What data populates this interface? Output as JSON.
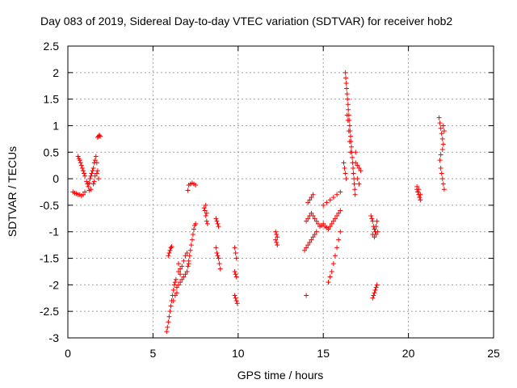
{
  "chart_data": {
    "type": "scatter",
    "title": "Day 083 of 2019, Sidereal Day-to-day VTEC variation (SDTVAR) for receiver hob2",
    "xlabel": "GPS time / hours",
    "ylabel": "SDTVAR / TECUs",
    "xlim": [
      0,
      25
    ],
    "ylim": [
      -3,
      2.5
    ],
    "xticks": [
      "0",
      "5",
      "10",
      "15",
      "20",
      "25"
    ],
    "yticks": [
      "-3",
      "-2.5",
      "-2",
      "-1.5",
      "-1",
      "-0.5",
      "0",
      "0.5",
      "1",
      "1.5",
      "2",
      "2.5"
    ],
    "grid": true,
    "marker": "plus",
    "color": "#ff0000",
    "series": [
      {
        "name": "SDTVAR",
        "points": [
          [
            0.3,
            -0.25
          ],
          [
            0.4,
            -0.27
          ],
          [
            0.5,
            -0.28
          ],
          [
            0.6,
            -0.3
          ],
          [
            0.7,
            -0.3
          ],
          [
            0.8,
            -0.32
          ],
          [
            0.9,
            -0.3
          ],
          [
            1.0,
            -0.25
          ],
          [
            0.6,
            0.42
          ],
          [
            0.65,
            0.38
          ],
          [
            0.7,
            0.35
          ],
          [
            0.75,
            0.3
          ],
          [
            0.8,
            0.25
          ],
          [
            0.85,
            0.2
          ],
          [
            0.9,
            0.15
          ],
          [
            0.95,
            0.1
          ],
          [
            1.0,
            0.05
          ],
          [
            1.1,
            -0.05
          ],
          [
            1.15,
            -0.1
          ],
          [
            1.2,
            -0.15
          ],
          [
            1.25,
            -0.08
          ],
          [
            1.3,
            0.0
          ],
          [
            1.35,
            0.05
          ],
          [
            1.4,
            0.1
          ],
          [
            1.45,
            0.15
          ],
          [
            1.5,
            0.2
          ],
          [
            1.55,
            0.3
          ],
          [
            1.6,
            0.35
          ],
          [
            1.65,
            0.42
          ],
          [
            1.7,
            0.3
          ],
          [
            1.75,
            0.15
          ],
          [
            1.8,
            0.0
          ],
          [
            1.55,
            -0.05
          ],
          [
            1.5,
            -0.1
          ],
          [
            1.35,
            -0.2
          ],
          [
            1.25,
            -0.22
          ],
          [
            1.6,
            0.05
          ],
          [
            1.7,
            0.1
          ],
          [
            1.75,
            0.78
          ],
          [
            1.8,
            0.8
          ],
          [
            1.85,
            0.82
          ],
          [
            1.9,
            0.8
          ],
          [
            5.8,
            -2.88
          ],
          [
            5.85,
            -2.8
          ],
          [
            5.9,
            -2.7
          ],
          [
            5.95,
            -2.6
          ],
          [
            6.0,
            -2.5
          ],
          [
            6.05,
            -2.4
          ],
          [
            6.1,
            -2.3
          ],
          [
            6.15,
            -2.2
          ],
          [
            6.2,
            -2.1
          ],
          [
            6.25,
            -2.0
          ],
          [
            6.3,
            -1.95
          ],
          [
            6.35,
            -1.9
          ],
          [
            6.4,
            -2.05
          ],
          [
            6.5,
            -2.0
          ],
          [
            6.6,
            -1.95
          ],
          [
            6.7,
            -1.9
          ],
          [
            6.8,
            -1.85
          ],
          [
            6.9,
            -1.8
          ],
          [
            7.0,
            -1.75
          ],
          [
            7.05,
            -1.65
          ],
          [
            7.1,
            -1.55
          ],
          [
            7.15,
            -1.45
          ],
          [
            7.2,
            -1.35
          ],
          [
            7.25,
            -1.25
          ],
          [
            7.3,
            -1.15
          ],
          [
            7.35,
            -1.05
          ],
          [
            7.4,
            -0.95
          ],
          [
            7.45,
            -0.88
          ],
          [
            7.5,
            -0.85
          ],
          [
            6.5,
            -1.6
          ],
          [
            6.6,
            -1.7
          ],
          [
            6.7,
            -1.65
          ],
          [
            6.8,
            -1.55
          ],
          [
            6.9,
            -1.45
          ],
          [
            7.0,
            -1.4
          ],
          [
            6.2,
            -2.3
          ],
          [
            6.3,
            -2.2
          ],
          [
            6.4,
            -2.15
          ],
          [
            6.5,
            -1.75
          ],
          [
            6.6,
            -1.8
          ],
          [
            7.1,
            -1.6
          ],
          [
            5.9,
            -1.45
          ],
          [
            5.95,
            -1.4
          ],
          [
            6.0,
            -1.35
          ],
          [
            6.05,
            -1.3
          ],
          [
            6.1,
            -1.28
          ],
          [
            7.1,
            -0.12
          ],
          [
            7.2,
            -0.1
          ],
          [
            7.3,
            -0.08
          ],
          [
            7.4,
            -0.1
          ],
          [
            7.5,
            -0.12
          ],
          [
            7.05,
            -0.22
          ],
          [
            8.0,
            -0.55
          ],
          [
            8.05,
            -0.6
          ],
          [
            8.1,
            -0.7
          ],
          [
            8.15,
            -0.8
          ],
          [
            8.2,
            -0.85
          ],
          [
            8.1,
            -0.5
          ],
          [
            8.15,
            -0.65
          ],
          [
            8.7,
            -0.75
          ],
          [
            8.75,
            -0.8
          ],
          [
            8.8,
            -0.85
          ],
          [
            8.85,
            -0.9
          ],
          [
            8.7,
            -1.3
          ],
          [
            8.75,
            -1.4
          ],
          [
            8.8,
            -1.45
          ],
          [
            8.85,
            -1.5
          ],
          [
            8.9,
            -1.6
          ],
          [
            8.95,
            -1.7
          ],
          [
            9.8,
            -1.3
          ],
          [
            9.85,
            -1.4
          ],
          [
            9.9,
            -1.5
          ],
          [
            9.8,
            -1.75
          ],
          [
            9.85,
            -1.8
          ],
          [
            9.9,
            -1.85
          ],
          [
            9.8,
            -2.2
          ],
          [
            9.85,
            -2.25
          ],
          [
            9.9,
            -2.3
          ],
          [
            9.95,
            -2.35
          ],
          [
            12.2,
            -1.0
          ],
          [
            12.25,
            -1.05
          ],
          [
            12.3,
            -1.1
          ],
          [
            12.2,
            -1.15
          ],
          [
            12.25,
            -1.2
          ],
          [
            12.3,
            -1.25
          ],
          [
            14.0,
            -2.2
          ],
          [
            13.9,
            -1.35
          ],
          [
            14.0,
            -1.3
          ],
          [
            14.1,
            -1.25
          ],
          [
            14.2,
            -1.2
          ],
          [
            14.3,
            -1.15
          ],
          [
            14.4,
            -1.1
          ],
          [
            14.5,
            -1.05
          ],
          [
            14.6,
            -1.0
          ],
          [
            14.0,
            -0.8
          ],
          [
            14.1,
            -0.75
          ],
          [
            14.2,
            -0.7
          ],
          [
            14.3,
            -0.65
          ],
          [
            14.4,
            -0.7
          ],
          [
            14.5,
            -0.75
          ],
          [
            14.6,
            -0.8
          ],
          [
            14.7,
            -0.85
          ],
          [
            14.8,
            -0.9
          ],
          [
            14.9,
            -0.88
          ],
          [
            15.0,
            -0.85
          ],
          [
            15.1,
            -0.9
          ],
          [
            15.2,
            -0.92
          ],
          [
            15.3,
            -0.95
          ],
          [
            15.4,
            -0.9
          ],
          [
            15.5,
            -0.85
          ],
          [
            15.6,
            -0.8
          ],
          [
            15.7,
            -0.75
          ],
          [
            15.8,
            -0.7
          ],
          [
            15.9,
            -0.65
          ],
          [
            16.0,
            -0.6
          ],
          [
            14.1,
            -0.45
          ],
          [
            14.2,
            -0.4
          ],
          [
            14.3,
            -0.35
          ],
          [
            14.4,
            -0.3
          ],
          [
            15.0,
            -0.5
          ],
          [
            15.2,
            -0.45
          ],
          [
            15.4,
            -0.4
          ],
          [
            15.6,
            -0.35
          ],
          [
            15.8,
            -0.3
          ],
          [
            16.0,
            -0.25
          ],
          [
            15.3,
            -1.95
          ],
          [
            15.4,
            -1.85
          ],
          [
            15.5,
            -1.75
          ],
          [
            15.6,
            -1.6
          ],
          [
            15.7,
            -1.45
          ],
          [
            15.8,
            -1.3
          ],
          [
            15.9,
            -1.15
          ],
          [
            16.0,
            -1.0
          ],
          [
            16.3,
            2.0
          ],
          [
            16.32,
            1.9
          ],
          [
            16.35,
            1.8
          ],
          [
            16.37,
            1.7
          ],
          [
            16.4,
            1.6
          ],
          [
            16.42,
            1.5
          ],
          [
            16.45,
            1.4
          ],
          [
            16.47,
            1.3
          ],
          [
            16.5,
            1.2
          ],
          [
            16.52,
            1.1
          ],
          [
            16.55,
            1.0
          ],
          [
            16.57,
            0.9
          ],
          [
            16.6,
            0.8
          ],
          [
            16.62,
            0.7
          ],
          [
            16.65,
            0.6
          ],
          [
            16.67,
            0.5
          ],
          [
            16.7,
            0.4
          ],
          [
            16.72,
            0.3
          ],
          [
            16.75,
            0.2
          ],
          [
            16.77,
            0.1
          ],
          [
            16.8,
            0.0
          ],
          [
            16.82,
            -0.1
          ],
          [
            16.85,
            -0.2
          ],
          [
            16.87,
            -0.3
          ],
          [
            16.9,
            0.3
          ],
          [
            17.0,
            0.25
          ],
          [
            17.1,
            0.2
          ],
          [
            17.2,
            0.15
          ],
          [
            16.2,
            0.3
          ],
          [
            16.25,
            0.2
          ],
          [
            16.3,
            0.1
          ],
          [
            16.35,
            0.0
          ],
          [
            16.4,
            1.2
          ],
          [
            16.45,
            1.1
          ],
          [
            16.5,
            0.9
          ],
          [
            16.55,
            0.7
          ],
          [
            16.6,
            0.5
          ],
          [
            16.9,
            0.5
          ],
          [
            17.0,
            0.0
          ],
          [
            17.1,
            -0.1
          ],
          [
            17.8,
            -0.7
          ],
          [
            17.85,
            -0.75
          ],
          [
            17.9,
            -0.8
          ],
          [
            17.95,
            -0.9
          ],
          [
            18.0,
            -0.95
          ],
          [
            18.05,
            -1.0
          ],
          [
            18.1,
            -0.9
          ],
          [
            18.15,
            -0.8
          ],
          [
            17.9,
            -1.05
          ],
          [
            18.0,
            -1.1
          ],
          [
            18.1,
            -1.05
          ],
          [
            18.2,
            -1.0
          ],
          [
            17.9,
            -2.25
          ],
          [
            17.95,
            -2.2
          ],
          [
            18.0,
            -2.15
          ],
          [
            18.05,
            -2.1
          ],
          [
            18.1,
            -2.05
          ],
          [
            18.15,
            -2.0
          ],
          [
            20.5,
            -0.2
          ],
          [
            20.55,
            -0.25
          ],
          [
            20.6,
            -0.3
          ],
          [
            20.65,
            -0.35
          ],
          [
            20.7,
            -0.4
          ],
          [
            20.5,
            -0.15
          ],
          [
            20.6,
            -0.2
          ],
          [
            20.7,
            -0.3
          ],
          [
            21.8,
            1.15
          ],
          [
            21.85,
            1.05
          ],
          [
            21.9,
            0.95
          ],
          [
            21.95,
            0.85
          ],
          [
            22.0,
            0.75
          ],
          [
            22.05,
            0.65
          ],
          [
            22.0,
            0.55
          ],
          [
            21.9,
            0.45
          ],
          [
            21.85,
            0.35
          ],
          [
            21.9,
            0.2
          ],
          [
            21.95,
            0.1
          ],
          [
            22.0,
            0.0
          ],
          [
            22.05,
            -0.1
          ],
          [
            22.1,
            -0.2
          ],
          [
            22.05,
            1.0
          ],
          [
            22.1,
            0.9
          ]
        ]
      }
    ]
  }
}
